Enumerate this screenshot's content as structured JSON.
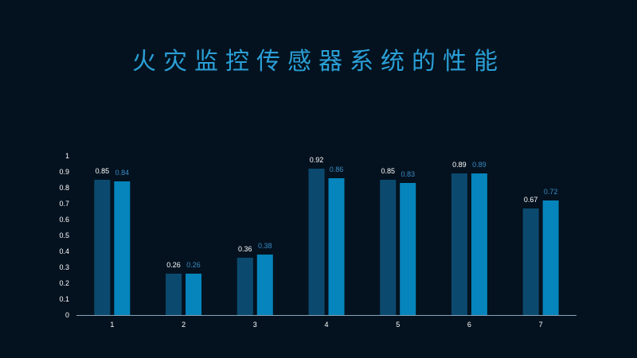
{
  "title": "火灾监控传感器系统的性能",
  "chart_data": {
    "type": "bar",
    "title": "火灾监控传感器系统的性能",
    "categories": [
      "1",
      "2",
      "3",
      "4",
      "5",
      "6",
      "7"
    ],
    "series": [
      {
        "values": [
          0.85,
          0.26,
          0.36,
          0.92,
          0.85,
          0.89,
          0.67
        ],
        "color": "#0b4a6e",
        "label_color": "#ffffff"
      },
      {
        "values": [
          0.84,
          0.26,
          0.38,
          0.86,
          0.83,
          0.89,
          0.72
        ],
        "color": "#0585bc",
        "label_color": "#3a8cc4"
      }
    ],
    "yticks": [
      "0",
      "0.1",
      "0.2",
      "0.3",
      "0.4",
      "0.5",
      "0.6",
      "0.7",
      "0.8",
      "0.9",
      "1"
    ],
    "ylim": [
      0,
      1
    ],
    "xlabel": "",
    "ylabel": "",
    "grid": false,
    "legend": "none",
    "axis_color": "#8aa4b8"
  }
}
